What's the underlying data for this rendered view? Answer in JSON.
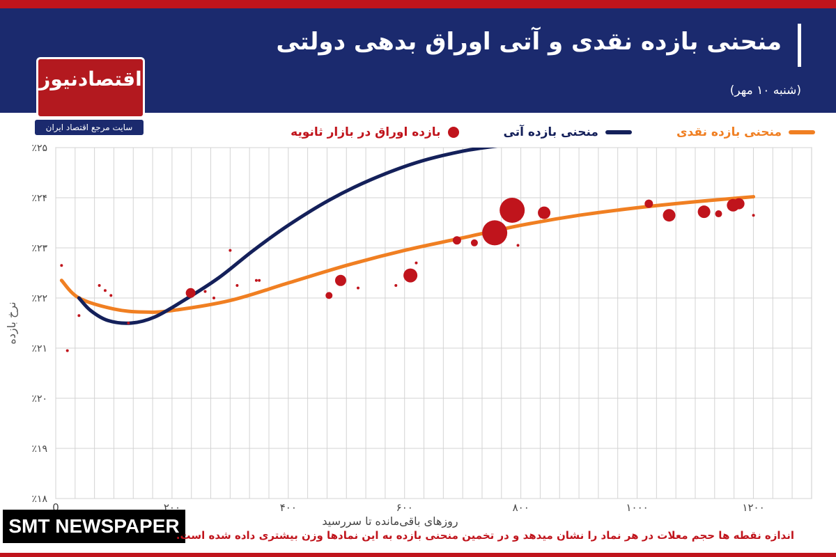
{
  "header": {
    "title": "منحنی بازده نقدی و آتی اوراق بدهی دولتی",
    "date": "(شنبه ۱۰ مهر)"
  },
  "brand": {
    "logo_text": "اقتصادنیوز",
    "logo_subtitle": "سایت مرجع اقتصاد ایران",
    "watermark": "SMT NEWSPAPER"
  },
  "footnote": "اندازه نقطه ها حجم معلات در هر نماد را نشان میدهد و در تخمین منحنی بازده به این نمادها وزن بیشتری داده شده است.",
  "colors": {
    "header_bg": "#1b2a6e",
    "accent_red": "#c0141c",
    "spot_curve": "#f07f22",
    "forward_curve": "#14205a",
    "dots": "#c0141c"
  },
  "chart_data": {
    "type": "scatter",
    "ylabel": "نرخ بازده",
    "xlabel": "روزهای باقی‌مانده تا سررسید",
    "xlim": [
      0,
      1300
    ],
    "ylim": [
      18,
      25
    ],
    "x_ticks": [
      0,
      200,
      400,
      600,
      800,
      1000,
      1200
    ],
    "x_tick_labels": [
      "0",
      "۲۰۰",
      "۴۰۰",
      "۶۰۰",
      "۸۰۰",
      "۱۰۰۰",
      "۱۲۰۰"
    ],
    "y_ticks": [
      18,
      19,
      20,
      21,
      22,
      23,
      24,
      25
    ],
    "y_tick_labels": [
      "٪۱۸",
      "٪۱۹",
      "٪۲۰",
      "٪۲۱",
      "٪۲۲",
      "٪۲۳",
      "٪۲۴",
      "٪۲۵"
    ],
    "grid": true,
    "legend_position": "top",
    "series": [
      {
        "name": "منحنی بازده نقدی",
        "kind": "line",
        "x": [
          10,
          40,
          100,
          150,
          200,
          300,
          400,
          500,
          600,
          700,
          800,
          900,
          1000,
          1100,
          1200
        ],
        "y": [
          22.35,
          22.0,
          21.78,
          21.72,
          21.75,
          21.95,
          22.3,
          22.65,
          22.95,
          23.2,
          23.45,
          23.65,
          23.8,
          23.92,
          24.02
        ]
      },
      {
        "name": "منحنی بازده آتی",
        "kind": "line",
        "x": [
          40,
          60,
          90,
          130,
          170,
          220,
          280,
          340,
          400,
          470,
          540,
          620,
          700,
          770
        ],
        "y": [
          22.0,
          21.75,
          21.55,
          21.5,
          21.62,
          21.95,
          22.4,
          22.95,
          23.45,
          23.95,
          24.35,
          24.7,
          24.93,
          25.05
        ]
      },
      {
        "name": "بازده اوراق در بازار ثانویه",
        "kind": "scatter",
        "x": [
          10,
          20,
          40,
          75,
          85,
          95,
          125,
          232,
          257,
          272,
          300,
          312,
          345,
          350,
          470,
          490,
          520,
          585,
          610,
          620,
          690,
          720,
          755,
          785,
          795,
          840,
          1020,
          1055,
          1115,
          1140,
          1165,
          1175,
          1200
        ],
        "y": [
          22.65,
          20.95,
          21.65,
          22.25,
          22.15,
          22.05,
          21.5,
          22.1,
          22.13,
          22.0,
          22.95,
          22.25,
          22.35,
          22.35,
          22.05,
          22.35,
          22.2,
          22.25,
          22.45,
          22.7,
          23.15,
          23.1,
          23.3,
          23.75,
          23.05,
          23.7,
          23.88,
          23.65,
          23.72,
          23.68,
          23.85,
          23.88,
          23.65
        ],
        "size": [
          2,
          2,
          2,
          2,
          2,
          2,
          2,
          7,
          2,
          2,
          2,
          2,
          2,
          2,
          5,
          8,
          2,
          2,
          10,
          2,
          6,
          5,
          18,
          18,
          2,
          9,
          6,
          9,
          9,
          5,
          9,
          8,
          2
        ]
      }
    ]
  }
}
